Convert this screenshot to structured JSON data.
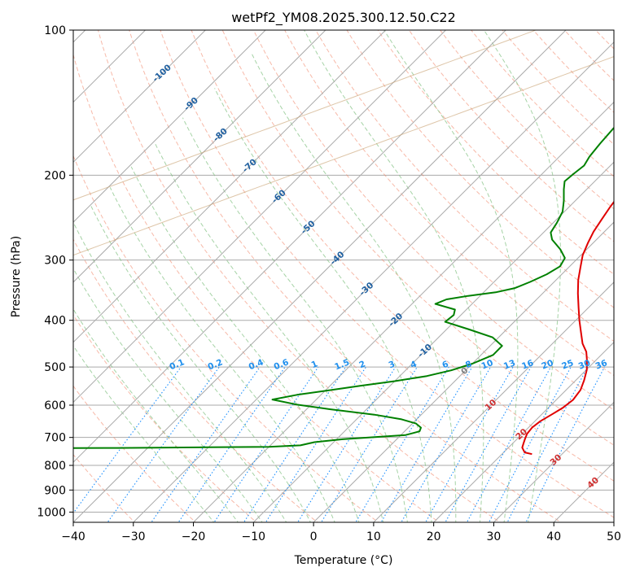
{
  "chart_data": {
    "type": "line",
    "diagram": "skew-T log-P",
    "title": "wetPf2_YM08.2025.300.12.50.C22",
    "xlabel": "Temperature (°C)",
    "ylabel": "Pressure (hPa)",
    "xlim": [
      -40,
      50
    ],
    "ylim": [
      1050,
      100
    ],
    "y_scale": "log",
    "x_ticks": [
      -40,
      -30,
      -20,
      -10,
      0,
      10,
      20,
      30,
      40,
      50
    ],
    "y_ticks": [
      100,
      200,
      300,
      400,
      500,
      600,
      700,
      800,
      900,
      1000
    ],
    "grid": true,
    "isotherm_labels": [
      -100,
      -90,
      -80,
      -70,
      -60,
      -50,
      -40,
      -30,
      -20,
      -10,
      0,
      10,
      20,
      30,
      40
    ],
    "mixing_ratio_labels": [
      "0.1",
      "0.2",
      "0.4",
      "0.6",
      "1",
      "1.5",
      "2",
      "3",
      "4",
      "6",
      "8",
      "10",
      "13",
      "16",
      "20",
      "25",
      "30",
      "36"
    ],
    "series": [
      {
        "role": "temperature",
        "color": "#e00000",
        "points": [
          [
            25.0,
            758
          ],
          [
            23.5,
            752
          ],
          [
            22.3,
            735
          ],
          [
            21.8,
            720
          ],
          [
            21.3,
            705
          ],
          [
            20.8,
            688
          ],
          [
            20.6,
            668
          ],
          [
            20.9,
            648
          ],
          [
            21.7,
            627
          ],
          [
            22.4,
            608
          ],
          [
            22.8,
            585
          ],
          [
            22.4,
            558
          ],
          [
            21.4,
            533
          ],
          [
            20.1,
            507
          ],
          [
            18.5,
            484
          ],
          [
            17.0,
            465
          ],
          [
            15.0,
            447
          ],
          [
            12.9,
            424
          ],
          [
            10.6,
            400
          ],
          [
            8.3,
            376
          ],
          [
            5.9,
            352
          ],
          [
            3.7,
            330
          ],
          [
            1.9,
            310
          ],
          [
            0.3,
            293
          ],
          [
            -0.9,
            276
          ],
          [
            -1.8,
            262
          ],
          [
            -2.5,
            247
          ],
          [
            -3.2,
            232
          ],
          [
            -3.7,
            218
          ],
          [
            -3.7,
            206
          ],
          [
            -3.3,
            197
          ],
          [
            -3.2,
            190
          ],
          [
            -2.4,
            181
          ],
          [
            -1.2,
            169
          ],
          [
            0.0,
            157
          ],
          [
            2.0,
            146
          ],
          [
            4.2,
            137
          ],
          [
            5.8,
            131
          ],
          [
            6.7,
            124
          ],
          [
            6.5,
            117
          ],
          [
            6.9,
            110
          ],
          [
            7.8,
            104
          ],
          [
            8.0,
            100
          ]
        ]
      },
      {
        "role": "dewpoint",
        "color": "#008000",
        "points": [
          [
            -75.0,
            739
          ],
          [
            -60.0,
            737
          ],
          [
            -45.0,
            736
          ],
          [
            -32.0,
            734
          ],
          [
            -20.0,
            732
          ],
          [
            -15.0,
            727
          ],
          [
            -13.2,
            716
          ],
          [
            -9.0,
            706
          ],
          [
            -2.8,
            697
          ],
          [
            0.8,
            692
          ],
          [
            2.5,
            680
          ],
          [
            2.1,
            668
          ],
          [
            0.6,
            655
          ],
          [
            -2.5,
            642
          ],
          [
            -7.8,
            628
          ],
          [
            -16.0,
            612
          ],
          [
            -22.5,
            598
          ],
          [
            -27.3,
            584
          ],
          [
            -24.0,
            571
          ],
          [
            -19.0,
            558
          ],
          [
            -15.0,
            547
          ],
          [
            -10.0,
            535
          ],
          [
            -5.5,
            522
          ],
          [
            -2.4,
            508
          ],
          [
            0.0,
            492
          ],
          [
            2.0,
            472
          ],
          [
            2.0,
            452
          ],
          [
            -1.0,
            434
          ],
          [
            -6.2,
            418
          ],
          [
            -11.5,
            403
          ],
          [
            -11.2,
            390
          ],
          [
            -11.9,
            380
          ],
          [
            -16.1,
            370
          ],
          [
            -15.0,
            362
          ],
          [
            -12.0,
            356
          ],
          [
            -8.0,
            350
          ],
          [
            -5.5,
            343
          ],
          [
            -4.0,
            333
          ],
          [
            -2.5,
            321
          ],
          [
            -1.6,
            309
          ],
          [
            -2.2,
            297
          ],
          [
            -4.4,
            285
          ],
          [
            -7.4,
            272
          ],
          [
            -8.8,
            263
          ],
          [
            -9.4,
            251
          ],
          [
            -10.3,
            238
          ],
          [
            -11.9,
            226
          ],
          [
            -13.8,
            214
          ],
          [
            -15.0,
            206
          ],
          [
            -14.8,
            199
          ],
          [
            -14.4,
            191
          ],
          [
            -15.0,
            183
          ],
          [
            -15.4,
            172
          ],
          [
            -15.7,
            160
          ],
          [
            -15.8,
            150
          ],
          [
            -16.2,
            141
          ],
          [
            -17.0,
            134
          ],
          [
            -17.5,
            128
          ],
          [
            -17.3,
            122
          ],
          [
            -16.5,
            115
          ],
          [
            -15.6,
            109
          ],
          [
            -14.9,
            104
          ],
          [
            -14.2,
            100
          ]
        ]
      }
    ]
  },
  "colors": {
    "temperature_line": "#e00000",
    "dewpoint_line": "#008000",
    "isotherm": "#aaaaaa",
    "dry_adiabat": "#f08060",
    "moist_adiabat": "#80c080",
    "mixing_ratio": "#1e90ff",
    "mixing_label": "#2090ee",
    "isotherm_label_cold": "#2060a0",
    "isotherm_label_zero": "#808080",
    "isotherm_label_warm": "#d03030",
    "outer_curve": "#c8a070"
  }
}
